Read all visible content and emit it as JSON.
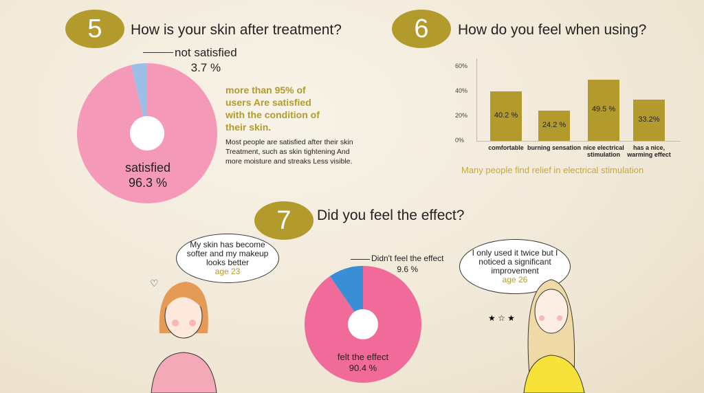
{
  "q5": {
    "number": "5",
    "question": "How is your skin after treatment?",
    "headline": "more than 95% of users Are satisfied with the condition of their skin.",
    "body": "Most people are satisfied after their skin Treatment, such as skin tightening And more moisture and streaks Less visible."
  },
  "q6": {
    "number": "6",
    "question": "How do you feel when using?",
    "caption": "Many people find relief in electrical stimulation"
  },
  "q7": {
    "number": "7",
    "question": "Did you feel the effect?",
    "bubble_left": {
      "text": "My skin has become softer and my makeup looks better",
      "age": "age 23"
    },
    "bubble_right": {
      "text": "I only used it twice but I noticed a significant improvement",
      "age": "age 26"
    }
  },
  "chart_data": [
    {
      "type": "pie",
      "slices": [
        {
          "label": "satisfied",
          "value_label": "96.3 %",
          "value": 96.3,
          "color": "#f49ab8"
        },
        {
          "label": "not satisfied",
          "value_label": "3.7 %",
          "value": 3.7,
          "color": "#9bbfe6"
        }
      ]
    },
    {
      "type": "bar",
      "categories": [
        "comfortable",
        "burning sensation",
        "nice electrical stimulation",
        "has a nice, warming effect"
      ],
      "values": [
        40.2,
        24.2,
        49.5,
        33.2
      ],
      "value_labels": [
        "40.2 %",
        "24.2 %",
        "49.5 %",
        "33.2%"
      ],
      "yticks": [
        "0%",
        "20%",
        "40%",
        "60%"
      ],
      "ylim": [
        0,
        60
      ],
      "color": "#b39a2c"
    },
    {
      "type": "pie",
      "slices": [
        {
          "label": "felt the effect",
          "value_label": "90.4 %",
          "value": 90.4,
          "color": "#f06a9a"
        },
        {
          "label": "Didn't feel the effect",
          "value_label": "9.6 %",
          "value": 9.6,
          "color": "#3a8fd4"
        }
      ]
    }
  ]
}
